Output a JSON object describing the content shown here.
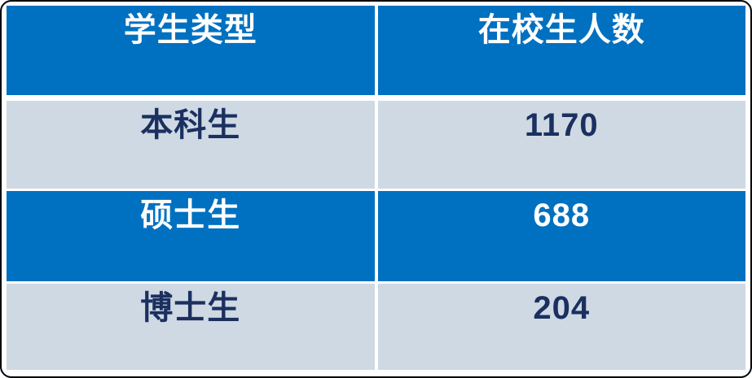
{
  "chart_data": {
    "type": "table",
    "title": "",
    "columns": [
      "学生类型",
      "在校生人数"
    ],
    "rows": [
      {
        "student_type": "本科生",
        "enrolled_count": 1170
      },
      {
        "student_type": "硕士生",
        "enrolled_count": 688
      },
      {
        "student_type": "博士生",
        "enrolled_count": 204
      }
    ]
  },
  "table": {
    "header": {
      "col1": "学生类型",
      "col2": "在校生人数"
    },
    "rows": [
      {
        "label": "本科生",
        "value": "1170"
      },
      {
        "label": "硕士生",
        "value": "688"
      },
      {
        "label": "博士生",
        "value": "204"
      }
    ]
  },
  "colors": {
    "band_blue": "#0070C0",
    "band_light": "#CFD9E3",
    "text_on_blue": "#FFFFFF",
    "text_on_light": "#1B3060",
    "frame_border": "#000000",
    "gutter": "#FFFFFF"
  }
}
